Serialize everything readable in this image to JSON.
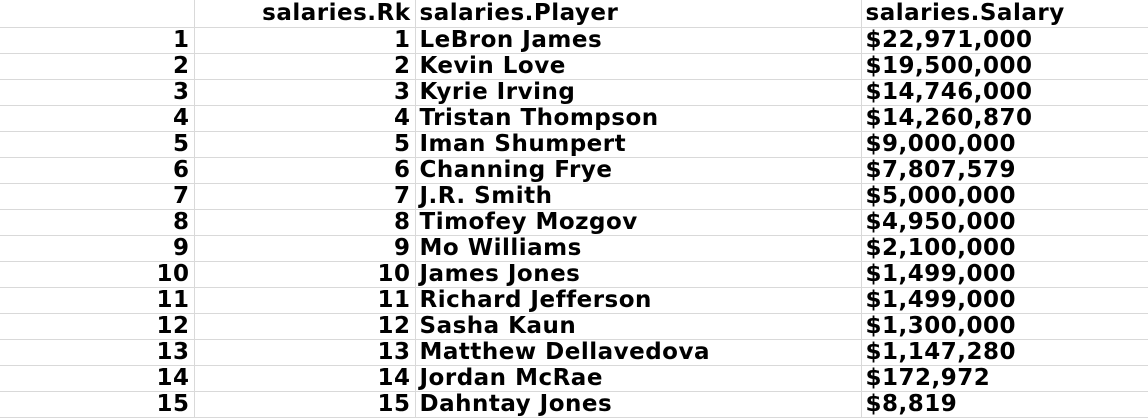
{
  "sheet": {
    "columns": [
      "",
      "salaries.Rk",
      "salaries.Player",
      "salaries.Salary"
    ],
    "rows": [
      {
        "index": "1",
        "rk": "1",
        "player": "LeBron James",
        "salary": "$22,971,000"
      },
      {
        "index": "2",
        "rk": "2",
        "player": "Kevin Love",
        "salary": "$19,500,000"
      },
      {
        "index": "3",
        "rk": "3",
        "player": "Kyrie Irving",
        "salary": "$14,746,000"
      },
      {
        "index": "4",
        "rk": "4",
        "player": "Tristan Thompson",
        "salary": "$14,260,870"
      },
      {
        "index": "5",
        "rk": "5",
        "player": "Iman Shumpert",
        "salary": "$9,000,000"
      },
      {
        "index": "6",
        "rk": "6",
        "player": "Channing Frye",
        "salary": "$7,807,579"
      },
      {
        "index": "7",
        "rk": "7",
        "player": "J.R. Smith",
        "salary": "$5,000,000"
      },
      {
        "index": "8",
        "rk": "8",
        "player": "Timofey Mozgov",
        "salary": "$4,950,000"
      },
      {
        "index": "9",
        "rk": "9",
        "player": "Mo Williams",
        "salary": "$2,100,000"
      },
      {
        "index": "10",
        "rk": "10",
        "player": "James Jones",
        "salary": "$1,499,000"
      },
      {
        "index": "11",
        "rk": "11",
        "player": "Richard Jefferson",
        "salary": "$1,499,000"
      },
      {
        "index": "12",
        "rk": "12",
        "player": "Sasha Kaun",
        "salary": "$1,300,000"
      },
      {
        "index": "13",
        "rk": "13",
        "player": "Matthew Dellavedova",
        "salary": "$1,147,280"
      },
      {
        "index": "14",
        "rk": "14",
        "player": "Jordan McRae",
        "salary": "$172,972"
      },
      {
        "index": "15",
        "rk": "15",
        "player": "Dahntay Jones",
        "salary": "$8,819"
      }
    ]
  }
}
